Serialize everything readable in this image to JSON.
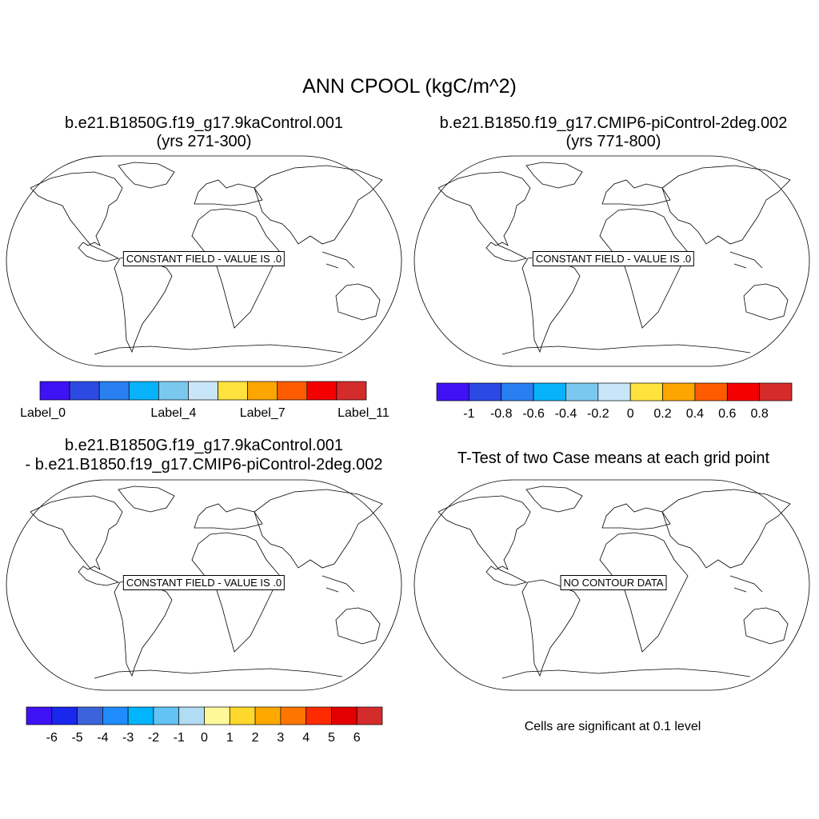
{
  "title": "ANN CPOOL (kgC/m^2)",
  "panels": [
    {
      "title1": "b.e21.B1850G.f19_g17.9kaControl.001",
      "title2": "(yrs 271-300)",
      "label": "CONSTANT FIELD - VALUE IS .0"
    },
    {
      "title1": "b.e21.B1850.f19_g17.CMIP6-piControl-2deg.002",
      "title2": "(yrs 771-800)",
      "label": "CONSTANT FIELD - VALUE IS .0"
    },
    {
      "title1": "b.e21.B1850G.f19_g17.9kaControl.001",
      "title2": "- b.e21.B1850.f19_g17.CMIP6-piControl-2deg.002",
      "label": "CONSTANT FIELD - VALUE IS .0"
    },
    {
      "title1": "T-Test of two Case means at each grid point",
      "label": "NO CONTOUR DATA",
      "note": "Cells are significant at 0.1 level"
    }
  ],
  "chart_data": [
    {
      "type": "colorbar",
      "panel": 1,
      "colors": [
        "#3f11f5",
        "#2b49e3",
        "#297ff0",
        "#08b2fb",
        "#7bc8ee",
        "#c8e6f7",
        "#fee23d",
        "#fea600",
        "#fe5b00",
        "#f50000",
        "#d42b2b"
      ],
      "tick_labels": [
        "Label_0",
        "Label_4",
        "Label_7",
        "Label_11"
      ],
      "tick_positions": [
        0,
        4,
        7,
        11
      ]
    },
    {
      "type": "colorbar",
      "panel": 2,
      "colors": [
        "#3f11f5",
        "#2b49e3",
        "#297ff0",
        "#08b2fb",
        "#7bc8ee",
        "#c8e6f7",
        "#fee23d",
        "#fea600",
        "#fe5b00",
        "#f50000",
        "#d42b2b"
      ],
      "tick_labels": [
        "-1",
        "-0.8",
        "-0.6",
        "-0.4",
        "-0.2",
        "0",
        "0.2",
        "0.4",
        "0.6",
        "0.8"
      ]
    },
    {
      "type": "colorbar",
      "panel": 3,
      "colors": [
        "#3f11f5",
        "#1a27ec",
        "#3b64dc",
        "#1e8cfd",
        "#00b5fd",
        "#62c3f4",
        "#b1dcf4",
        "#fef89b",
        "#fed82a",
        "#fea900",
        "#fe7600",
        "#fe2a00",
        "#e40000",
        "#d42b2b"
      ],
      "tick_labels": [
        "-6",
        "-5",
        "-4",
        "-3",
        "-2",
        "-1",
        "0",
        "1",
        "2",
        "3",
        "4",
        "5",
        "6"
      ]
    }
  ]
}
